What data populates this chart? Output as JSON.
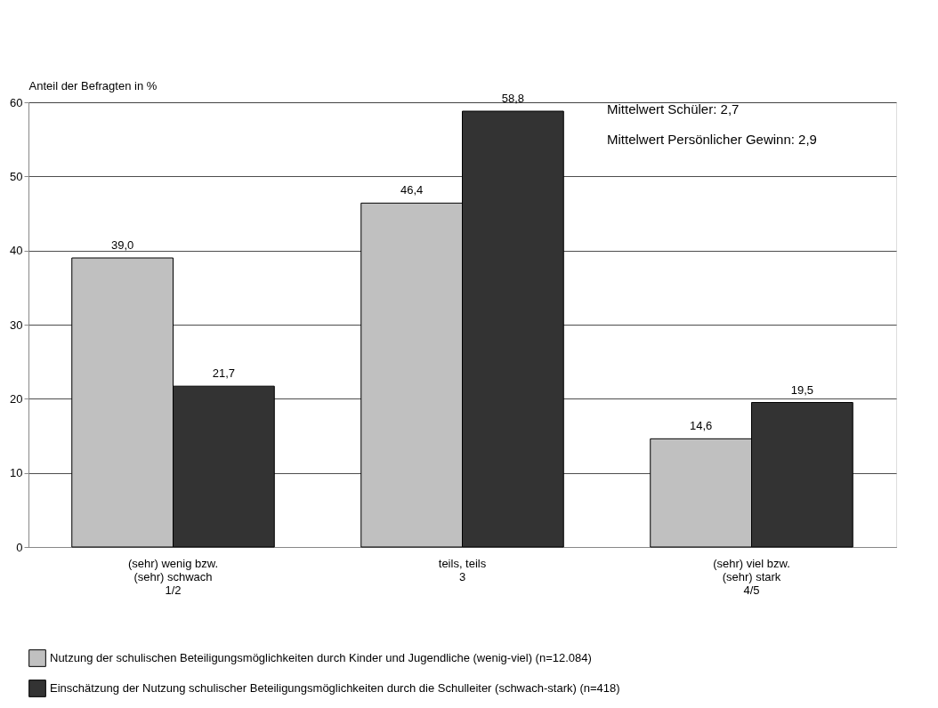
{
  "chart_data": {
    "type": "bar",
    "ylabel": "Anteil der Befragten in %",
    "categories": [
      "(sehr) wenig bzw.\n(sehr) schwach\n\n1/2",
      "teils, teils\n\n3",
      "(sehr) viel bzw.\n(sehr) stark\n\n4/5"
    ],
    "series": [
      {
        "name": "Nutzung der schulischen Beteiligungsmöglichkeiten durch Kinder und Jugendliche (wenig-viel) (n=12.084)",
        "color": "#c0c0c0",
        "values": [
          39.0,
          46.4,
          14.6
        ],
        "value_labels": [
          "39,0",
          "46,4",
          "14,6"
        ]
      },
      {
        "name": "Einschätzung der Nutzung schulischer Beteiligungsmöglichkeiten durch die Schulleiter (schwach-stark) (n=418)",
        "color": "#333333",
        "values": [
          21.7,
          58.8,
          19.5
        ],
        "value_labels": [
          "21,7",
          "58,8",
          "19,5"
        ]
      }
    ],
    "ylim": [
      0,
      60
    ],
    "yticks": [
      0,
      10,
      20,
      30,
      40,
      50,
      60
    ],
    "grid": "y",
    "legend": "bottom",
    "annotations": [
      "Mittelwert Schüler: 2,7",
      "Mittelwert Persönlicher Gewinn: 2,9"
    ]
  }
}
